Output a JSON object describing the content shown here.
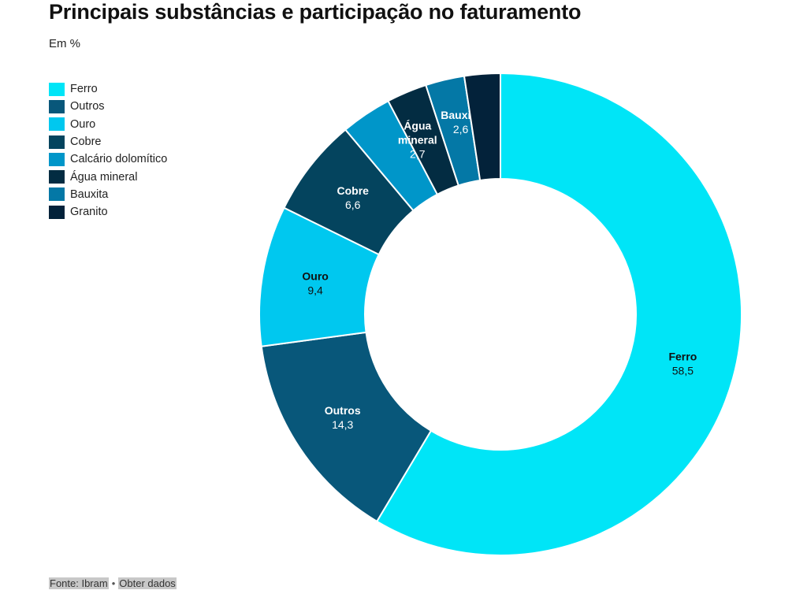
{
  "header": {
    "title": "Principais substâncias e participação no faturamento",
    "subtitle": "Em %"
  },
  "footer": {
    "source": "Fonte: Ibram",
    "separator": "•",
    "link": "Obter dados"
  },
  "chart_data": {
    "type": "pie",
    "variant": "donut",
    "title": "Principais substâncias e participação no faturamento",
    "subtitle": "Em %",
    "legend_position": "top-left",
    "categories": [
      "Ferro",
      "Outros",
      "Ouro",
      "Cobre",
      "Calcário dolomítico",
      "Água mineral",
      "Bauxita",
      "Granito"
    ],
    "values": [
      58.5,
      14.3,
      9.4,
      6.6,
      3.4,
      2.7,
      2.6,
      2.4
    ],
    "value_labels": [
      "58,5",
      "14,3",
      "9,4",
      "6,6",
      "",
      "2,7",
      "2,6",
      ""
    ],
    "slice_labels": [
      "Ferro",
      "Outros",
      "Ouro",
      "Cobre",
      "",
      "Água mineral",
      "Bauxita",
      ""
    ],
    "colors": [
      "#00e5f7",
      "#08577a",
      "#00c8ef",
      "#04445e",
      "#0096c9",
      "#032c42",
      "#0478a6",
      "#03223a"
    ],
    "label_colors": [
      "#111111",
      "#ffffff",
      "#111111",
      "#ffffff",
      "#ffffff",
      "#ffffff",
      "#ffffff",
      "#ffffff"
    ]
  }
}
